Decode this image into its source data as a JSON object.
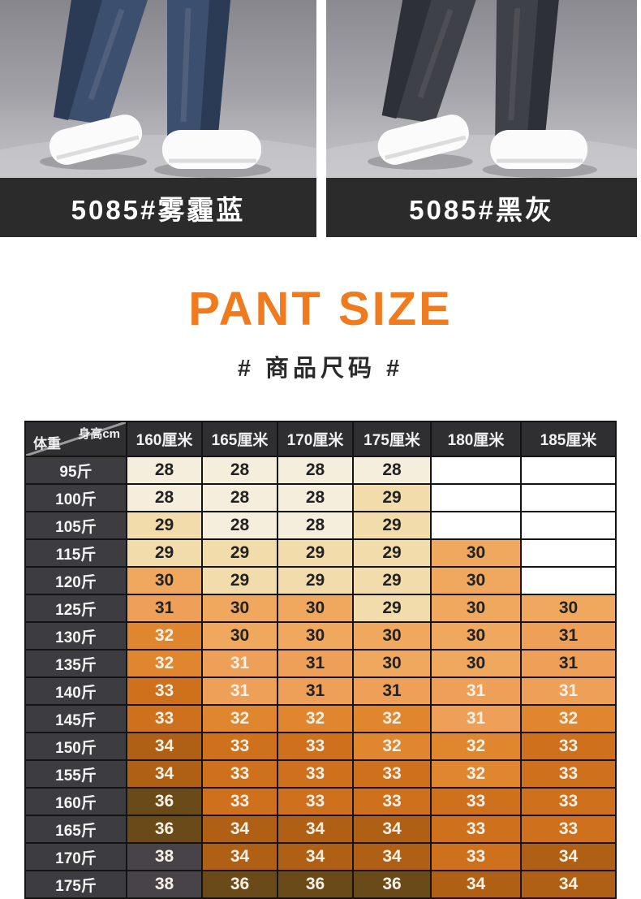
{
  "products": [
    {
      "label": "5085#雾霾蓝",
      "bar_color": "#2b2b2b",
      "jeans_color": "#3d4f6e",
      "jeans_shade": "#2c3b55"
    },
    {
      "label": "5085#黑灰",
      "bar_color": "#2b2b2b",
      "jeans_color": "#3e4147",
      "jeans_shade": "#2d3036"
    }
  ],
  "title": {
    "text": "PANT SIZE",
    "color": "#ef7b1e"
  },
  "subtitle": {
    "text": "# 商品尺码 #",
    "color": "#2b2b2b"
  },
  "size_table": {
    "corner": {
      "top_right": "身高cm",
      "bottom_left": "体重"
    },
    "columns": [
      "160厘米",
      "165厘米",
      "170厘米",
      "175厘米",
      "180厘米",
      "185厘米"
    ],
    "rows": [
      {
        "weight": "95斤",
        "values": [
          "28",
          "28",
          "28",
          "28",
          "",
          ""
        ],
        "text": [
          "d",
          "d",
          "d",
          "d",
          "",
          ""
        ]
      },
      {
        "weight": "100斤",
        "values": [
          "28",
          "28",
          "28",
          "29",
          "",
          ""
        ],
        "text": [
          "d",
          "d",
          "d",
          "d",
          "",
          ""
        ]
      },
      {
        "weight": "105斤",
        "values": [
          "29",
          "28",
          "28",
          "29",
          "",
          ""
        ],
        "text": [
          "d",
          "d",
          "d",
          "d",
          "",
          ""
        ]
      },
      {
        "weight": "115斤",
        "values": [
          "29",
          "29",
          "29",
          "29",
          "30",
          ""
        ],
        "text": [
          "d",
          "d",
          "d",
          "d",
          "d",
          ""
        ]
      },
      {
        "weight": "120斤",
        "values": [
          "30",
          "29",
          "29",
          "29",
          "30",
          ""
        ],
        "text": [
          "d",
          "d",
          "d",
          "d",
          "d",
          ""
        ]
      },
      {
        "weight": "125斤",
        "values": [
          "31",
          "30",
          "30",
          "29",
          "30",
          "30"
        ],
        "text": [
          "d",
          "d",
          "d",
          "d",
          "d",
          "d"
        ]
      },
      {
        "weight": "130斤",
        "values": [
          "32",
          "30",
          "30",
          "30",
          "30",
          "31"
        ],
        "text": [
          "l",
          "d",
          "d",
          "d",
          "d",
          "d"
        ]
      },
      {
        "weight": "135斤",
        "values": [
          "32",
          "31",
          "31",
          "30",
          "30",
          "31"
        ],
        "text": [
          "l",
          "l",
          "d",
          "d",
          "d",
          "d"
        ]
      },
      {
        "weight": "140斤",
        "values": [
          "33",
          "31",
          "31",
          "31",
          "31",
          "31"
        ],
        "text": [
          "l",
          "l",
          "d",
          "d",
          "l",
          "l"
        ]
      },
      {
        "weight": "145斤",
        "values": [
          "33",
          "32",
          "32",
          "32",
          "31",
          "32"
        ],
        "text": [
          "l",
          "l",
          "l",
          "l",
          "l",
          "l"
        ]
      },
      {
        "weight": "150斤",
        "values": [
          "34",
          "33",
          "33",
          "32",
          "32",
          "33"
        ],
        "text": [
          "l",
          "l",
          "l",
          "l",
          "l",
          "l"
        ]
      },
      {
        "weight": "155斤",
        "values": [
          "34",
          "33",
          "33",
          "33",
          "32",
          "33"
        ],
        "text": [
          "l",
          "l",
          "l",
          "l",
          "l",
          "l"
        ]
      },
      {
        "weight": "160斤",
        "values": [
          "36",
          "33",
          "33",
          "33",
          "33",
          "33"
        ],
        "text": [
          "l",
          "l",
          "l",
          "l",
          "l",
          "l"
        ]
      },
      {
        "weight": "165斤",
        "values": [
          "36",
          "34",
          "34",
          "34",
          "33",
          "33"
        ],
        "text": [
          "l",
          "l",
          "l",
          "l",
          "l",
          "l"
        ]
      },
      {
        "weight": "170斤",
        "values": [
          "38",
          "34",
          "34",
          "34",
          "33",
          "34"
        ],
        "text": [
          "l",
          "l",
          "l",
          "l",
          "l",
          "l"
        ]
      },
      {
        "weight": "175斤",
        "values": [
          "38",
          "36",
          "36",
          "36",
          "34",
          "34"
        ],
        "text": [
          "l",
          "l",
          "l",
          "l",
          "l",
          "l"
        ]
      }
    ],
    "value_colors": {
      "28": "#f5eedd",
      "29": "#f3dcab",
      "30": "#f0a75e",
      "31": "#eea058",
      "32": "#e0862f",
      "33": "#cf701c",
      "34": "#b06014",
      "36": "#6b4a1a",
      "38": "#474349"
    },
    "empty_color": "#ffffff",
    "text_colors": {
      "d": "#222222",
      "l": "#f7f0e4"
    },
    "header_bg": "#2f2f31",
    "row_header_bg": "#3d3d41",
    "border_color": "#141414"
  }
}
